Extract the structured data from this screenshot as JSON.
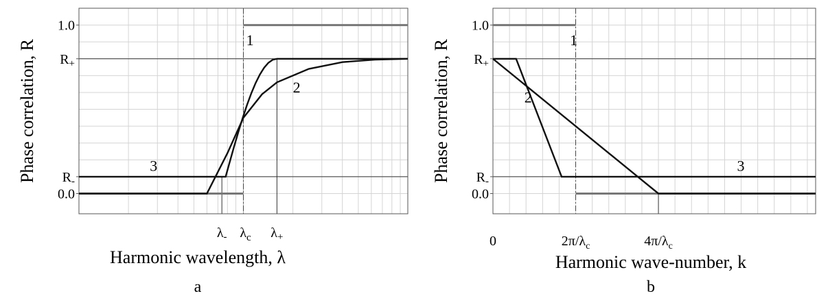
{
  "chart_data": [
    {
      "panel": "a",
      "type": "line",
      "xlabel": "Harmonic wavelength, λ",
      "ylabel": "Phase correlation, R",
      "x_scale": "log",
      "y_ticks": [
        "1.0",
        "R+",
        "R-",
        "0.0"
      ],
      "y_tick_values": [
        1.0,
        0.8,
        0.1,
        0.0
      ],
      "x_ticks": [
        "λ-",
        "λc",
        "λ+"
      ],
      "x_tick_values": [
        0.74,
        1.0,
        1.6
      ],
      "xlim": [
        0.1,
        10
      ],
      "ylim": [
        -0.12,
        1.1
      ],
      "grid": true,
      "series": [
        {
          "name": "1",
          "x": [
            0.1,
            1.0,
            1.0,
            10
          ],
          "y": [
            0,
            0,
            1.0,
            1.0
          ]
        },
        {
          "name": "2",
          "x": [
            0.6,
            0.8,
            1.0,
            1.3,
            1.6,
            2.5,
            4.0,
            6.3,
            10
          ],
          "y": [
            0,
            0.24,
            0.45,
            0.59,
            0.66,
            0.74,
            0.78,
            0.795,
            0.8
          ]
        },
        {
          "name": "3",
          "x": [
            0.1,
            0.78,
            1.6,
            10
          ],
          "y": [
            0.1,
            0.1,
            0.8,
            0.8
          ]
        }
      ]
    },
    {
      "panel": "b",
      "type": "line",
      "xlabel": "Harmonic wave-number, k",
      "ylabel": "Phase correlation, R",
      "y_ticks": [
        "1.0",
        "R+",
        "R-",
        "0.0"
      ],
      "y_tick_values": [
        1.0,
        0.8,
        0.1,
        0.0
      ],
      "x_ticks": [
        "0",
        "2π/λc",
        "4π/λc"
      ],
      "x_tick_values": [
        0,
        1,
        2
      ],
      "xlim": [
        0,
        3.9
      ],
      "ylim": [
        -0.12,
        1.1
      ],
      "grid": true,
      "series": [
        {
          "name": "1",
          "x": [
            0,
            1,
            1,
            3.9
          ],
          "y": [
            1.0,
            1.0,
            0,
            0
          ]
        },
        {
          "name": "2",
          "x": [
            0,
            2,
            3.9
          ],
          "y": [
            0.8,
            0,
            0
          ]
        },
        {
          "name": "3",
          "x": [
            0,
            0.28,
            0.83,
            3.9
          ],
          "y": [
            0.8,
            0.8,
            0.1,
            0.1
          ]
        }
      ]
    }
  ]
}
